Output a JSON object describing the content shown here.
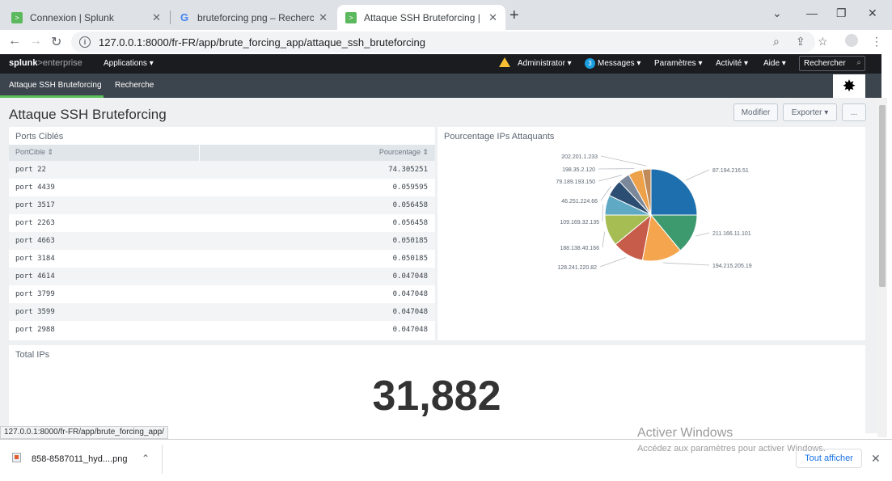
{
  "browser": {
    "tabs": [
      {
        "title": "Connexion | Splunk",
        "icon": "splunk-icon"
      },
      {
        "title": "bruteforcing png – Recherche Go",
        "icon": "google-icon"
      },
      {
        "title": "Attaque SSH Bruteforcing | Splun",
        "icon": "splunk-icon"
      }
    ],
    "url": "127.0.0.1:8000/fr-FR/app/brute_forcing_app/attaque_ssh_bruteforcing",
    "status_url": "127.0.0.1:8000/fr-FR/app/brute_forcing_app/"
  },
  "splunk_bar": {
    "logo_main": "splunk",
    "logo_sub": ">enterprise",
    "apps": "Applications ▾",
    "user": "Administrator ▾",
    "messages_count": "3",
    "messages": "Messages ▾",
    "settings": "Paramètres ▾",
    "activity": "Activité ▾",
    "help": "Aide ▾",
    "search_placeholder": "Rechercher"
  },
  "app_nav": {
    "items": [
      "Attaque SSH Bruteforcing",
      "Recherche"
    ]
  },
  "dashboard": {
    "title": "Attaque SSH Bruteforcing",
    "buttons": {
      "edit": "Modifier",
      "export": "Exporter ▾",
      "more": "..."
    },
    "panel_ports": {
      "title": "Ports Ciblés",
      "columns": [
        "PortCible ⇕",
        "Pourcentage ⇕"
      ],
      "rows": [
        [
          "port 22",
          "74.305251"
        ],
        [
          "port 4439",
          "0.059595"
        ],
        [
          "port 3517",
          "0.056458"
        ],
        [
          "port 2263",
          "0.056458"
        ],
        [
          "port 4663",
          "0.050185"
        ],
        [
          "port 3184",
          "0.050185"
        ],
        [
          "port 4614",
          "0.047048"
        ],
        [
          "port 3799",
          "0.047048"
        ],
        [
          "port 3599",
          "0.047048"
        ],
        [
          "port 2988",
          "0.047048"
        ]
      ]
    },
    "panel_pie": {
      "title": "Pourcentage IPs Attaquants"
    },
    "panel_total": {
      "title": "Total IPs",
      "value": "31,882"
    }
  },
  "chart_data": {
    "type": "pie",
    "title": "Pourcentage IPs Attaquants",
    "labels": [
      "87.194.216.51",
      "211.166.11.101",
      "194.215.205.19",
      "128.241.220.82",
      "188.138.40.166",
      "109.169.32.135",
      "46.251.224.66",
      "79.189.193.150",
      "198.35.2.120",
      "202.201.1.233"
    ],
    "values": [
      25,
      14,
      14,
      11,
      11,
      7,
      6,
      4,
      5,
      3
    ],
    "colors": [
      "#1e6fad",
      "#3d9a6e",
      "#f5a54e",
      "#c75c4b",
      "#a6bd54",
      "#5fa9c4",
      "#2c4e72",
      "#7a8899",
      "#eca14a",
      "#c08b59"
    ]
  },
  "windows_overlay": {
    "line1": "Activer Windows",
    "line2": "Accédez aux paramètres pour activer Windows."
  },
  "download_bar": {
    "file": "858-8587011_hyd....png",
    "show_all": "Tout afficher"
  }
}
